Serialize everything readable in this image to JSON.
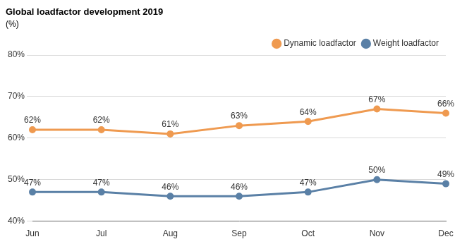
{
  "chart_data": {
    "type": "line",
    "title": "Global loadfactor development 2019",
    "subtitle": "(%)",
    "categories": [
      "Jun",
      "Jul",
      "Aug",
      "Sep",
      "Oct",
      "Nov",
      "Dec"
    ],
    "series": [
      {
        "name": "Dynamic loadfactor",
        "color": "#ef9a50",
        "marker": "circle",
        "line_style": "solid",
        "values": [
          62,
          62,
          61,
          63,
          64,
          67,
          66
        ],
        "value_labels": [
          "62%",
          "62%",
          "61%",
          "63%",
          "64%",
          "67%",
          "66%"
        ]
      },
      {
        "name": "Weight loadfactor",
        "color": "#5a80a6",
        "marker": "circle",
        "line_style": "solid",
        "values": [
          47,
          47,
          46,
          46,
          47,
          50,
          49
        ],
        "value_labels": [
          "47%",
          "47%",
          "46%",
          "46%",
          "47%",
          "50%",
          "49%"
        ]
      }
    ],
    "ylim": [
      40,
      80
    ],
    "yticks": [
      {
        "value": 40,
        "label": "40%"
      },
      {
        "value": 50,
        "label": "50%"
      },
      {
        "value": 60,
        "label": "60%"
      },
      {
        "value": 70,
        "label": "70%"
      },
      {
        "value": 80,
        "label": "80%"
      }
    ],
    "grid": true,
    "legend": "top right",
    "data_labels": true
  }
}
